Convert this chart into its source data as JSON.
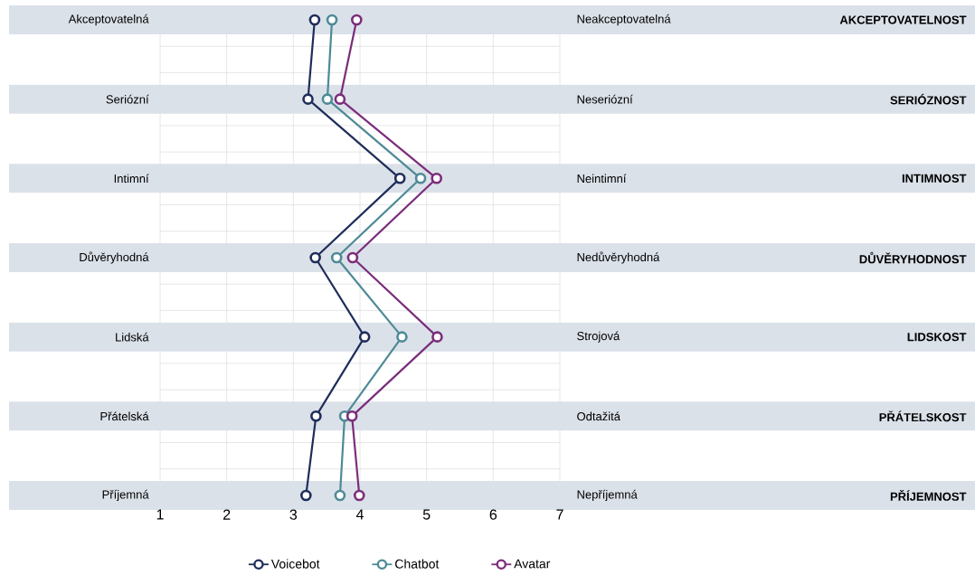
{
  "chart_data": {
    "type": "line",
    "orientation": "horizontal",
    "categories": [
      "Akceptovatelná",
      "Seriózní",
      "Intimní",
      "Důvěryhodná",
      "Lidská",
      "Přátelská",
      "Příjemná"
    ],
    "y2_categories": [
      "Neakceptovatelná",
      "Neseriózní",
      "Neintimní",
      "Nedůvěryhodná",
      "Strojová",
      "Odtažitá",
      "Nepříjemná"
    ],
    "annotations": [
      "AKCEPTOVATELNOST",
      "SERIÓZNOST",
      "INTIMNOST",
      "DŮVĚRYHODNOST",
      "LIDSKOST",
      "PŘÁTELSKOST",
      "PŘÍJEMNOST"
    ],
    "series": [
      {
        "name": "Voicebot",
        "color": "#1f2d5a",
        "values": [
          3.32,
          3.22,
          4.6,
          3.33,
          4.07,
          3.34,
          3.19
        ]
      },
      {
        "name": "Chatbot",
        "color": "#4e8a96",
        "values": [
          3.58,
          3.51,
          4.91,
          3.65,
          4.63,
          3.77,
          3.7
        ]
      },
      {
        "name": "Avatar",
        "color": "#7b2d7b",
        "values": [
          3.95,
          3.7,
          5.15,
          3.89,
          5.16,
          3.88,
          3.99
        ]
      }
    ],
    "xlim": [
      1,
      7
    ],
    "xticks": [
      1,
      2,
      3,
      4,
      5,
      6,
      7
    ],
    "grid": true,
    "marker": "circle",
    "line_style": "solid",
    "legend": "bottom",
    "bands": [
      {
        "axis": "y",
        "from": "Akceptovatelná",
        "to": "Akceptovatelná",
        "color": "#dbe1e9"
      },
      {
        "axis": "y",
        "from": "Seriózní",
        "to": "Seriózní",
        "color": "#dbe1e9"
      },
      {
        "axis": "y",
        "from": "Intimní",
        "to": "Intimní",
        "color": "#dbe1e9"
      },
      {
        "axis": "y",
        "from": "Důvěryhodná",
        "to": "Důvěryhodná",
        "color": "#dbe1e9"
      },
      {
        "axis": "y",
        "from": "Lidská",
        "to": "Lidská",
        "color": "#dbe1e9"
      },
      {
        "axis": "y",
        "from": "Přátelská",
        "to": "Přátelská",
        "color": "#dbe1e9"
      },
      {
        "axis": "y",
        "from": "Příjemná",
        "to": "Příjemná",
        "color": "#dbe1e9"
      }
    ]
  }
}
